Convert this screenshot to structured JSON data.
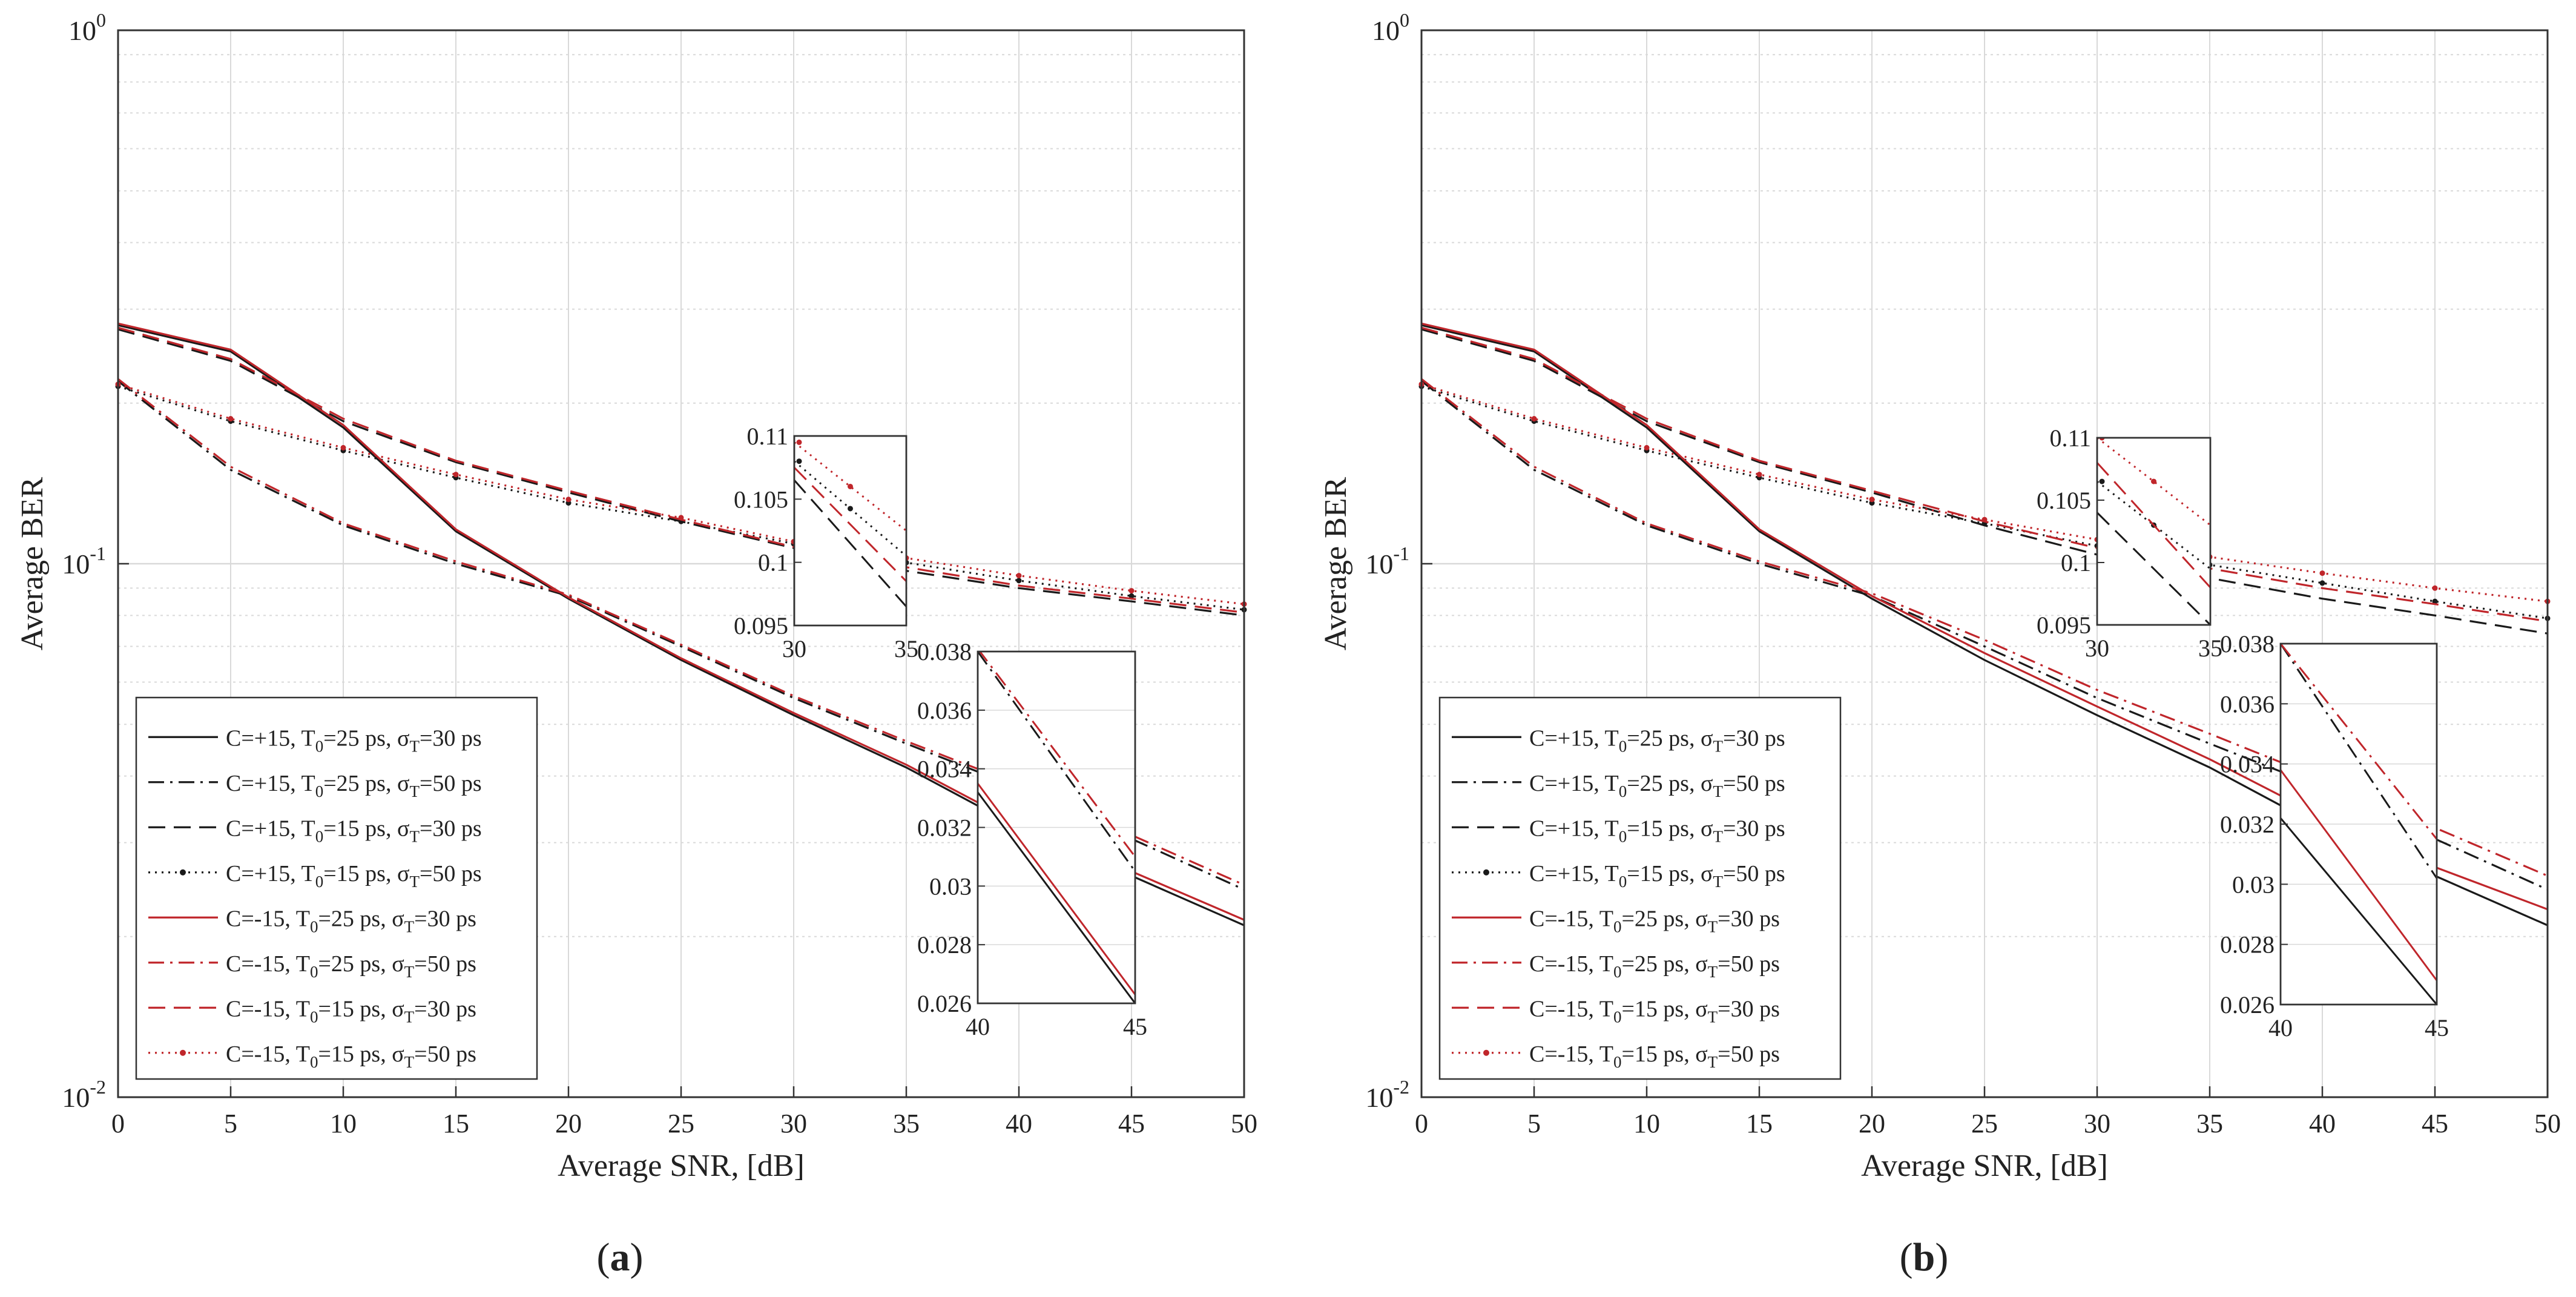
{
  "figure": {
    "panel_labels": [
      "(a)",
      "(b)"
    ]
  },
  "style": {
    "black": "#1a1a1a",
    "red": "#c0262b",
    "grid": "#d9d9d9",
    "axis": "#333333"
  },
  "legend_entries": [
    {
      "C": "C=+15",
      "T0": "25 ps",
      "sigma": "30 ps",
      "color": "black",
      "dash": "solid"
    },
    {
      "C": "C=+15",
      "T0": "25 ps",
      "sigma": "50 ps",
      "color": "black",
      "dash": "dashdot"
    },
    {
      "C": "C=+15",
      "T0": "15 ps",
      "sigma": "30 ps",
      "color": "black",
      "dash": "dashed"
    },
    {
      "C": "C=+15",
      "T0": "15 ps",
      "sigma": "50 ps",
      "color": "black",
      "dash": "dotted"
    },
    {
      "C": "C=-15",
      "T0": "25 ps",
      "sigma": "30 ps",
      "color": "red",
      "dash": "solid"
    },
    {
      "C": "C=-15",
      "T0": "25 ps",
      "sigma": "50 ps",
      "color": "red",
      "dash": "dashdot"
    },
    {
      "C": "C=-15",
      "T0": "15 ps",
      "sigma": "30 ps",
      "color": "red",
      "dash": "dashed"
    },
    {
      "C": "C=-15",
      "T0": "15 ps",
      "sigma": "50 ps",
      "color": "red",
      "dash": "dotted"
    }
  ],
  "chart_data": [
    {
      "type": "line",
      "panel": "(a)",
      "xlabel": "Average SNR, [dB]",
      "ylabel": "Average BER",
      "xlim": [
        0,
        50
      ],
      "ylim": [
        0.01,
        1
      ],
      "yscale": "log",
      "grid": true,
      "xticks": [
        0,
        5,
        10,
        15,
        20,
        25,
        30,
        35,
        40,
        45,
        50
      ],
      "ytick_labels": [
        "10^-2",
        "10^-1",
        "10^0"
      ],
      "legend_position": "bottom-left",
      "x": [
        0,
        5,
        10,
        15,
        20,
        25,
        30,
        35,
        40,
        45,
        50
      ],
      "series": [
        {
          "name": "C=+15, T0=25 ps, σT=30 ps",
          "values": [
            0.28,
            0.25,
            0.18,
            0.115,
            0.086,
            0.066,
            0.052,
            0.0415,
            0.032,
            0.026,
            0.021
          ]
        },
        {
          "name": "C=+15, T0=25 ps, σT=50 ps",
          "values": [
            0.22,
            0.15,
            0.118,
            0.1,
            0.087,
            0.07,
            0.056,
            0.046,
            0.038,
            0.0305,
            0.0245
          ]
        },
        {
          "name": "C=+15, T0=15 ps, σT=30 ps",
          "values": [
            0.275,
            0.24,
            0.185,
            0.155,
            0.136,
            0.12,
            0.107,
            0.097,
            0.09,
            0.085,
            0.08
          ]
        },
        {
          "name": "C=+15, T0=15 ps, σT=50 ps",
          "values": [
            0.215,
            0.185,
            0.163,
            0.145,
            0.13,
            0.12,
            0.109,
            0.1005,
            0.093,
            0.087,
            0.082
          ]
        },
        {
          "name": "C=-15, T0=25 ps, σT=30 ps",
          "values": [
            0.282,
            0.252,
            0.182,
            0.116,
            0.0865,
            0.0665,
            0.0525,
            0.042,
            0.0325,
            0.0265,
            0.0215
          ]
        },
        {
          "name": "C=-15, T0=25 ps, σT=50 ps",
          "values": [
            0.222,
            0.152,
            0.119,
            0.101,
            0.0875,
            0.0705,
            0.0565,
            0.0465,
            0.0385,
            0.031,
            0.025
          ]
        },
        {
          "name": "C=-15, T0=15 ps, σT=30 ps",
          "values": [
            0.277,
            0.242,
            0.187,
            0.156,
            0.137,
            0.121,
            0.1075,
            0.0985,
            0.091,
            0.086,
            0.081
          ]
        },
        {
          "name": "C=-15, T0=15 ps, σT=50 ps",
          "values": [
            0.217,
            0.187,
            0.165,
            0.147,
            0.132,
            0.122,
            0.11,
            0.1025,
            0.095,
            0.089,
            0.084
          ]
        }
      ],
      "insets": [
        {
          "xlim": [
            30,
            35
          ],
          "ylim": [
            0.095,
            0.11
          ],
          "xticks": [
            30,
            35
          ],
          "yticks": [
            0.095,
            0.1,
            0.105,
            0.11
          ],
          "ytick_labels": [
            "0.095",
            "0.1",
            "0.105",
            "0.11"
          ],
          "lines": [
            {
              "series": 2,
              "x": [
                30,
                35
              ],
              "y": [
                0.1065,
                0.0965
              ]
            },
            {
              "series": 3,
              "x": [
                30,
                35
              ],
              "y": [
                0.108,
                0.1005
              ]
            },
            {
              "series": 6,
              "x": [
                30,
                35
              ],
              "y": [
                0.1075,
                0.0985
              ]
            },
            {
              "series": 7,
              "x": [
                30,
                35
              ],
              "y": [
                0.1095,
                0.1025
              ]
            }
          ]
        },
        {
          "xlim": [
            40,
            45
          ],
          "ylim": [
            0.026,
            0.038
          ],
          "xticks": [
            40,
            45
          ],
          "yticks": [
            0.026,
            0.028,
            0.03,
            0.032,
            0.034,
            0.036,
            0.038
          ],
          "ytick_labels": [
            "0.026",
            "0.028",
            "0.03",
            "0.032",
            "0.034",
            "0.036",
            "0.038"
          ],
          "lines": [
            {
              "series": 0,
              "x": [
                40,
                45
              ],
              "y": [
                0.0332,
                0.026
              ]
            },
            {
              "series": 4,
              "x": [
                40,
                45
              ],
              "y": [
                0.0335,
                0.0263
              ]
            },
            {
              "series": 1,
              "x": [
                40,
                45
              ],
              "y": [
                0.038,
                0.0305
              ]
            },
            {
              "series": 5,
              "x": [
                40,
                45
              ],
              "y": [
                0.0381,
                0.031
              ]
            }
          ]
        }
      ]
    },
    {
      "type": "line",
      "panel": "(b)",
      "xlabel": "Average SNR, [dB]",
      "ylabel": "Average BER",
      "xlim": [
        0,
        50
      ],
      "ylim": [
        0.01,
        1
      ],
      "yscale": "log",
      "grid": true,
      "xticks": [
        0,
        5,
        10,
        15,
        20,
        25,
        30,
        35,
        40,
        45,
        50
      ],
      "ytick_labels": [
        "10^-2",
        "10^-1",
        "10^0"
      ],
      "legend_position": "bottom-left",
      "x": [
        0,
        5,
        10,
        15,
        20,
        25,
        30,
        35,
        40,
        45,
        50
      ],
      "series": [
        {
          "name": "C=+15, T0=25 ps, σT=30 ps",
          "values": [
            0.28,
            0.25,
            0.18,
            0.115,
            0.086,
            0.066,
            0.052,
            0.0415,
            0.032,
            0.026,
            0.021
          ]
        },
        {
          "name": "C=+15, T0=25 ps, σT=50 ps",
          "values": [
            0.22,
            0.15,
            0.118,
            0.1,
            0.087,
            0.07,
            0.056,
            0.046,
            0.038,
            0.0305,
            0.0245
          ]
        },
        {
          "name": "C=+15, T0=15 ps, σT=30 ps",
          "values": [
            0.275,
            0.24,
            0.185,
            0.155,
            0.136,
            0.118,
            0.104,
            0.094,
            0.086,
            0.08,
            0.074
          ]
        },
        {
          "name": "C=+15, T0=15 ps, σT=50 ps",
          "values": [
            0.215,
            0.185,
            0.163,
            0.145,
            0.13,
            0.119,
            0.108,
            0.0995,
            0.092,
            0.085,
            0.079
          ]
        },
        {
          "name": "C=-15, T0=25 ps, σT=30 ps",
          "values": [
            0.282,
            0.252,
            0.182,
            0.116,
            0.087,
            0.068,
            0.054,
            0.043,
            0.0335,
            0.027,
            0.0225
          ]
        },
        {
          "name": "C=-15, T0=25 ps, σT=50 ps",
          "values": [
            0.222,
            0.152,
            0.119,
            0.101,
            0.088,
            0.072,
            0.058,
            0.048,
            0.0395,
            0.032,
            0.026
          ]
        },
        {
          "name": "C=-15, T0=15 ps, σT=30 ps",
          "values": [
            0.277,
            0.242,
            0.187,
            0.156,
            0.137,
            0.12,
            0.107,
            0.098,
            0.09,
            0.084,
            0.078
          ]
        },
        {
          "name": "C=-15, T0=15 ps, σT=50 ps",
          "values": [
            0.217,
            0.187,
            0.165,
            0.147,
            0.132,
            0.121,
            0.111,
            0.103,
            0.096,
            0.09,
            0.085
          ]
        }
      ],
      "insets": [
        {
          "xlim": [
            30,
            35
          ],
          "ylim": [
            0.095,
            0.11
          ],
          "xticks": [
            30,
            35
          ],
          "yticks": [
            0.095,
            0.1,
            0.105,
            0.11
          ],
          "ytick_labels": [
            "0.095",
            "0.1",
            "0.105",
            "0.11"
          ],
          "lines": [
            {
              "series": 2,
              "x": [
                30,
                35
              ],
              "y": [
                0.104,
                0.095
              ]
            },
            {
              "series": 3,
              "x": [
                30,
                35
              ],
              "y": [
                0.1065,
                0.0995
              ]
            },
            {
              "series": 6,
              "x": [
                30,
                35
              ],
              "y": [
                0.108,
                0.098
              ]
            },
            {
              "series": 7,
              "x": [
                30,
                35
              ],
              "y": [
                0.11,
                0.103
              ]
            }
          ]
        },
        {
          "xlim": [
            40,
            45
          ],
          "ylim": [
            0.026,
            0.038
          ],
          "xticks": [
            40,
            45
          ],
          "yticks": [
            0.026,
            0.028,
            0.03,
            0.032,
            0.034,
            0.036,
            0.038
          ],
          "ytick_labels": [
            "0.026",
            "0.028",
            "0.03",
            "0.032",
            "0.034",
            "0.036",
            "0.038"
          ],
          "lines": [
            {
              "series": 0,
              "x": [
                40,
                45
              ],
              "y": [
                0.0322,
                0.026
              ]
            },
            {
              "series": 4,
              "x": [
                40,
                45
              ],
              "y": [
                0.0338,
                0.0268
              ]
            },
            {
              "series": 1,
              "x": [
                40,
                45
              ],
              "y": [
                0.038,
                0.0302
              ]
            },
            {
              "series": 5,
              "x": [
                40,
                45
              ],
              "y": [
                0.038,
                0.0315
              ]
            }
          ]
        }
      ]
    }
  ]
}
